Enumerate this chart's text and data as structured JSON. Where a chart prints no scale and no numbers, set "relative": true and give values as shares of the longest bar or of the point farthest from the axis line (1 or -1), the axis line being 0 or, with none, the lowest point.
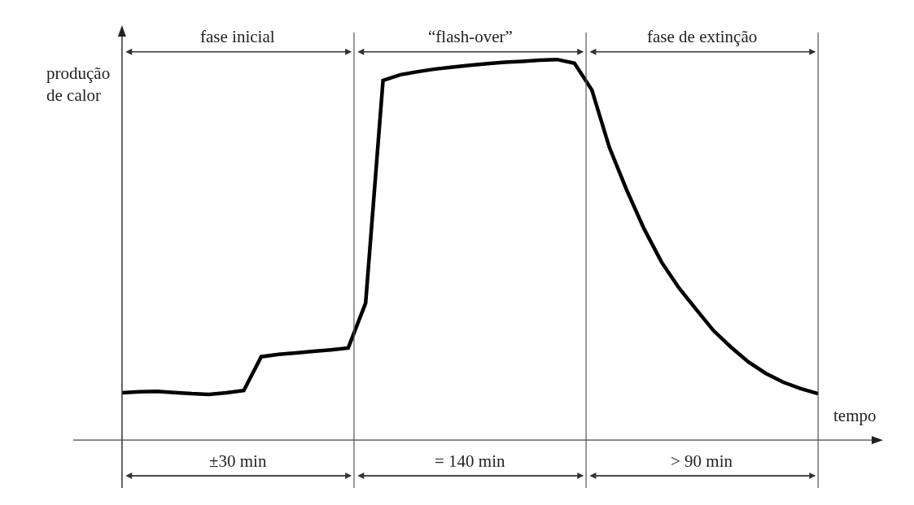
{
  "chart_data": {
    "type": "line",
    "relative": true,
    "xlabel": "tempo",
    "ylabel": "produção de calor",
    "grid": false,
    "marker": "none",
    "line_style": "solid",
    "categories": [
      null,
      null,
      null,
      null,
      null,
      null,
      null,
      null,
      null,
      null,
      null,
      null,
      null,
      null,
      null,
      null,
      null,
      null,
      null,
      null,
      null,
      null,
      null,
      null,
      null,
      null,
      null,
      null,
      null,
      null,
      null,
      null,
      null,
      null,
      null,
      null,
      null,
      null,
      null,
      null,
      null
    ],
    "series": [
      {
        "color": "#000000",
        "values": [
          0.124,
          0.127,
          0.128,
          0.125,
          0.122,
          0.12,
          0.124,
          0.13,
          0.219,
          0.225,
          0.229,
          0.233,
          0.237,
          0.242,
          0.36,
          0.945,
          0.96,
          0.968,
          0.975,
          0.98,
          0.985,
          0.989,
          0.993,
          0.995,
          0.998,
          1.0,
          0.99,
          0.92,
          0.77,
          0.657,
          0.555,
          0.468,
          0.4,
          0.343,
          0.287,
          0.244,
          0.205,
          0.175,
          0.152,
          0.135,
          0.122
        ]
      }
    ],
    "annotations": [
      "fase inicial",
      "“flash-over”",
      "fase de extinção",
      "±30 min",
      "= 140 min",
      "> 90 min"
    ]
  }
}
